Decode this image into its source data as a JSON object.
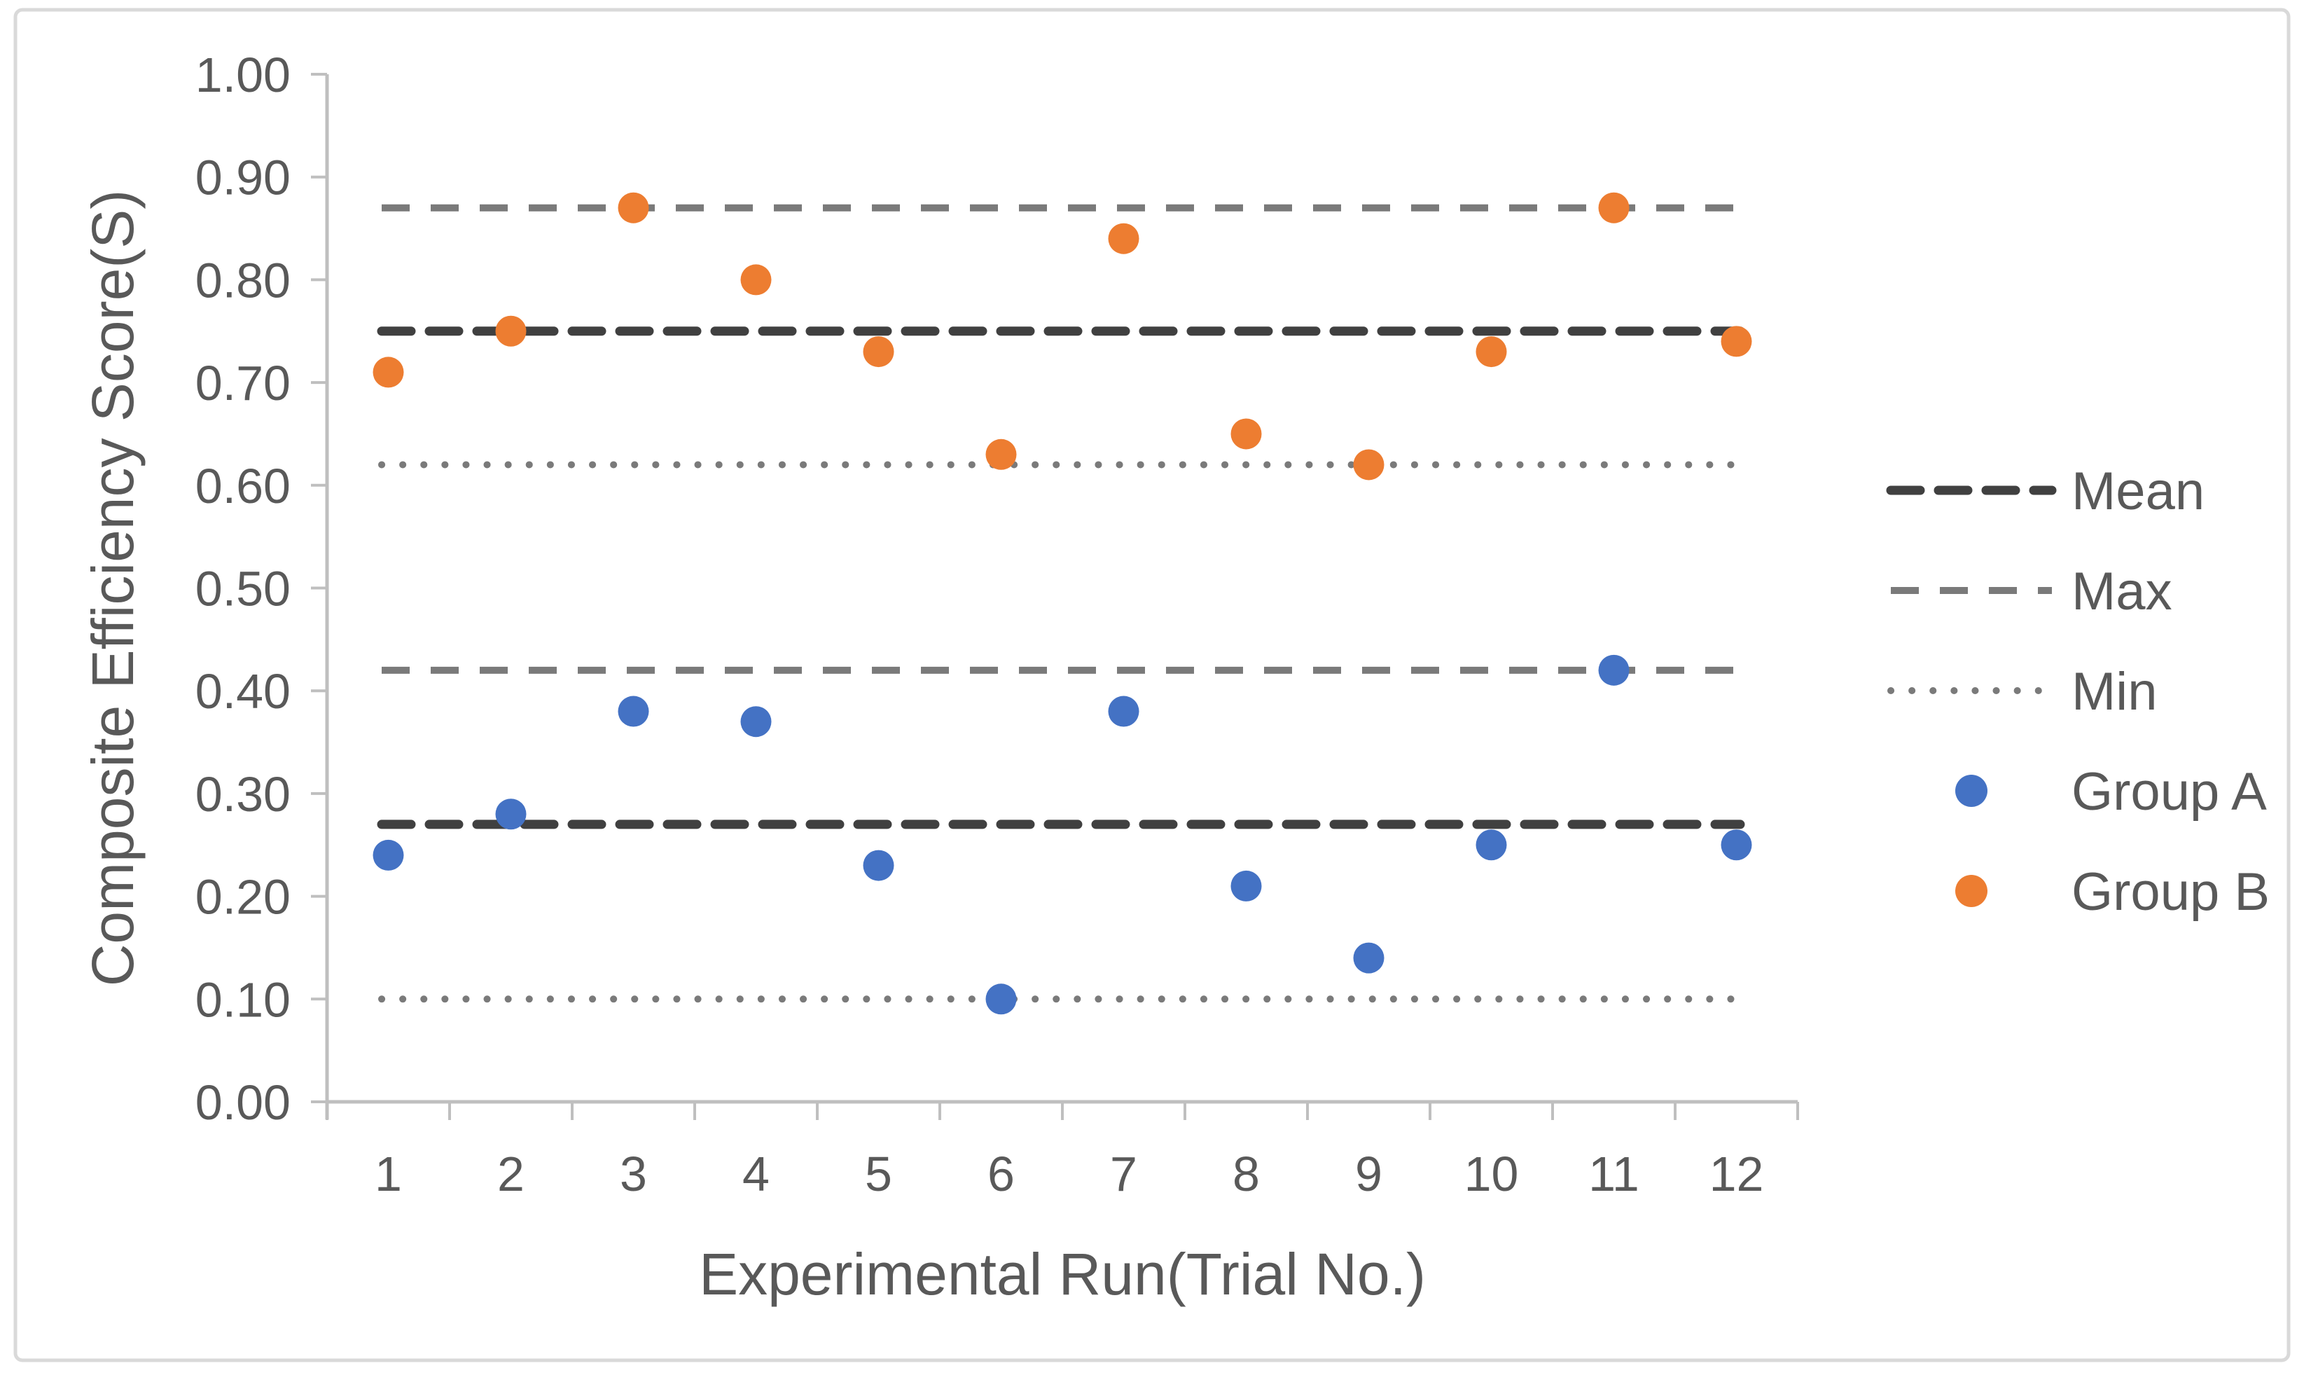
{
  "figure": {
    "background": "#ffffff",
    "border_color": "#d9d9d9"
  },
  "chart_data": {
    "type": "scatter",
    "title": "",
    "xlabel": "Experimental Run(Trial No.)",
    "ylabel": "Composite Efficiency Score(S)",
    "categories": [
      "1",
      "2",
      "3",
      "4",
      "5",
      "6",
      "7",
      "8",
      "9",
      "10",
      "11",
      "12"
    ],
    "ylim": [
      0.0,
      1.0
    ],
    "yticks": [
      0.0,
      0.1,
      0.2,
      0.3,
      0.4,
      0.5,
      0.6,
      0.7,
      0.8,
      0.9,
      1.0
    ],
    "ytick_labels": [
      "0.00",
      "0.10",
      "0.20",
      "0.30",
      "0.40",
      "0.50",
      "0.60",
      "0.70",
      "0.80",
      "0.90",
      "1.00"
    ],
    "grid": false,
    "legend_position": "right",
    "axis_color": "#bfbfbf",
    "text_color": "#595959",
    "series": [
      {
        "name": "Group A",
        "color": "#4472C4",
        "values": [
          0.24,
          0.28,
          0.38,
          0.37,
          0.23,
          0.1,
          0.38,
          0.21,
          0.14,
          0.25,
          0.42,
          0.25
        ],
        "mean": 0.27,
        "max": 0.42,
        "min": 0.1
      },
      {
        "name": "Group B",
        "color": "#ED7D31",
        "values": [
          0.71,
          0.75,
          0.87,
          0.8,
          0.73,
          0.63,
          0.84,
          0.65,
          0.62,
          0.73,
          0.87,
          0.74
        ],
        "mean": 0.75,
        "max": 0.87,
        "min": 0.62
      }
    ],
    "reference_lines": [
      {
        "series": "Group B",
        "stat": "Max",
        "value": 0.87,
        "style": "dash",
        "color": "#7a7a7a"
      },
      {
        "series": "Group B",
        "stat": "Mean",
        "value": 0.75,
        "style": "bold-dash",
        "color": "#404040"
      },
      {
        "series": "Group B",
        "stat": "Min",
        "value": 0.62,
        "style": "dot",
        "color": "#7a7a7a"
      },
      {
        "series": "Group A",
        "stat": "Max",
        "value": 0.42,
        "style": "dash",
        "color": "#7a7a7a"
      },
      {
        "series": "Group A",
        "stat": "Mean",
        "value": 0.27,
        "style": "bold-dash",
        "color": "#404040"
      },
      {
        "series": "Group A",
        "stat": "Min",
        "value": 0.1,
        "style": "dot",
        "color": "#7a7a7a"
      }
    ],
    "legend": [
      {
        "label": "Mean",
        "swatch": "bold-dash",
        "color": "#404040"
      },
      {
        "label": "Max",
        "swatch": "dash",
        "color": "#7a7a7a"
      },
      {
        "label": "Min",
        "swatch": "dot",
        "color": "#7a7a7a"
      },
      {
        "label": "Group A",
        "swatch": "circle",
        "color": "#4472C4"
      },
      {
        "label": "Group B",
        "swatch": "circle",
        "color": "#ED7D31"
      }
    ]
  }
}
